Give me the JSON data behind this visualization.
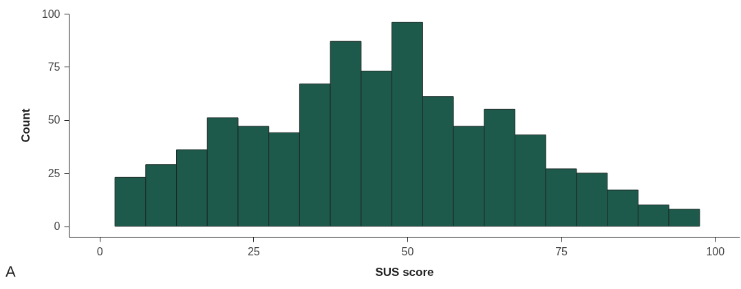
{
  "chart_data": {
    "type": "histogram",
    "xlabel": "SUS score",
    "ylabel": "Count",
    "bins": [
      2.5,
      7.5,
      12.5,
      17.5,
      22.5,
      27.5,
      32.5,
      37.5,
      42.5,
      47.5,
      52.5,
      57.5,
      62.5,
      67.5,
      72.5,
      77.5,
      82.5,
      87.5,
      92.5,
      97.5
    ],
    "values": [
      23,
      29,
      36,
      51,
      47,
      44,
      67,
      87,
      73,
      96,
      61,
      47,
      55,
      43,
      27,
      25,
      17,
      10,
      8
    ],
    "color": "#1e5a4c",
    "xlim": [
      -5,
      104
    ],
    "xticks": [
      0,
      25,
      50,
      75,
      100
    ],
    "ylim": [
      -5,
      100
    ],
    "yticks": [
      0,
      25,
      50,
      75,
      100
    ],
    "grid": false,
    "annotations": [
      "A"
    ]
  }
}
